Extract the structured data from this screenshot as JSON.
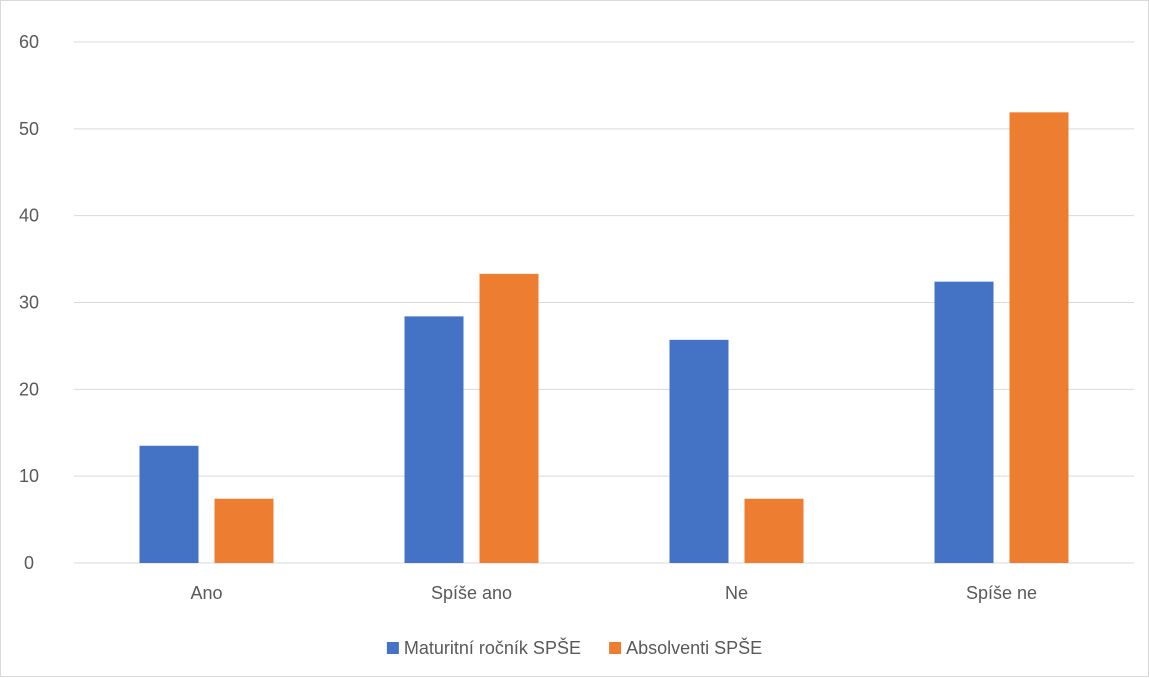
{
  "chart_data": {
    "type": "bar",
    "categories": [
      "Ano",
      "Spíše ano",
      "Ne",
      "Spíše ne"
    ],
    "series": [
      {
        "name": "Maturitní ročník SPŠE",
        "values": [
          13.5,
          28.4,
          25.7,
          32.4
        ],
        "color": "#4472c4"
      },
      {
        "name": "Absolventi SPŠE",
        "values": [
          7.4,
          33.3,
          7.4,
          51.9
        ],
        "color": "#ed7d31"
      }
    ],
    "ylim": [
      0,
      60
    ],
    "yticks": [
      0,
      10,
      20,
      30,
      40,
      50,
      60
    ],
    "grid": true,
    "legend_position": "bottom",
    "title": "",
    "xlabel": "",
    "ylabel": ""
  }
}
